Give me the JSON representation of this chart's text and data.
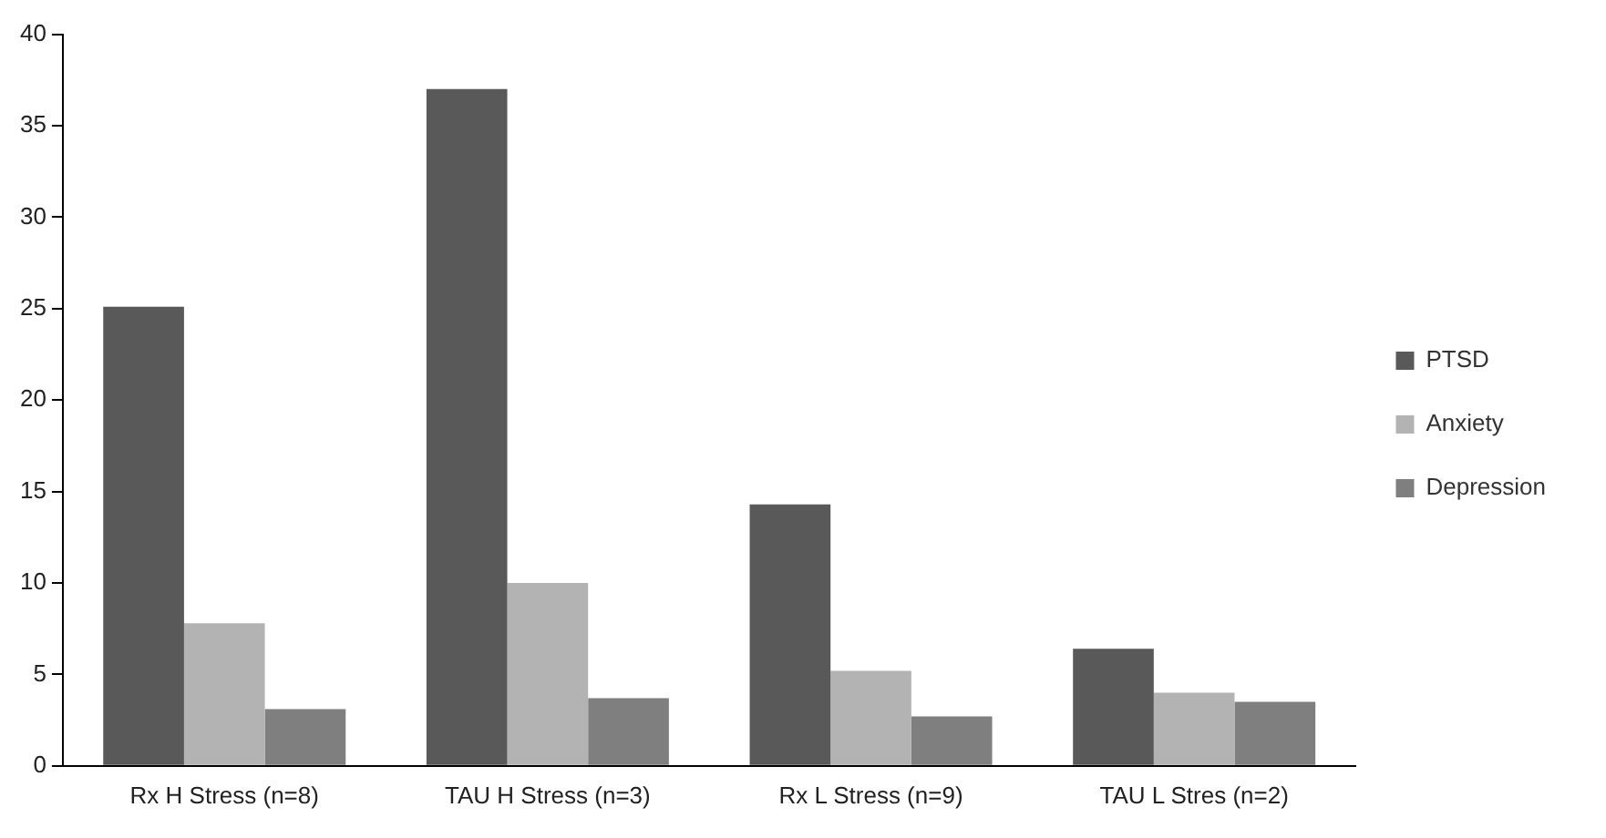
{
  "chart_data": {
    "type": "bar",
    "categories": [
      "Rx H Stress (n=8)",
      "TAU H Stress (n=3)",
      "Rx L Stress (n=9)",
      "TAU L Stres (n=2)"
    ],
    "series": [
      {
        "name": "PTSD",
        "color": "#595959",
        "values": [
          25.1,
          37,
          14.3,
          6.4
        ]
      },
      {
        "name": "Anxiety",
        "color": "#b3b3b3",
        "values": [
          7.8,
          10,
          5.2,
          4
        ]
      },
      {
        "name": "Depression",
        "color": "#7f7f7f",
        "values": [
          3.1,
          3.7,
          2.7,
          3.5
        ]
      }
    ],
    "ylim": [
      0,
      40
    ],
    "yticks": [
      0,
      5,
      10,
      15,
      20,
      25,
      30,
      35,
      40
    ],
    "grid": false,
    "legend": "right"
  }
}
